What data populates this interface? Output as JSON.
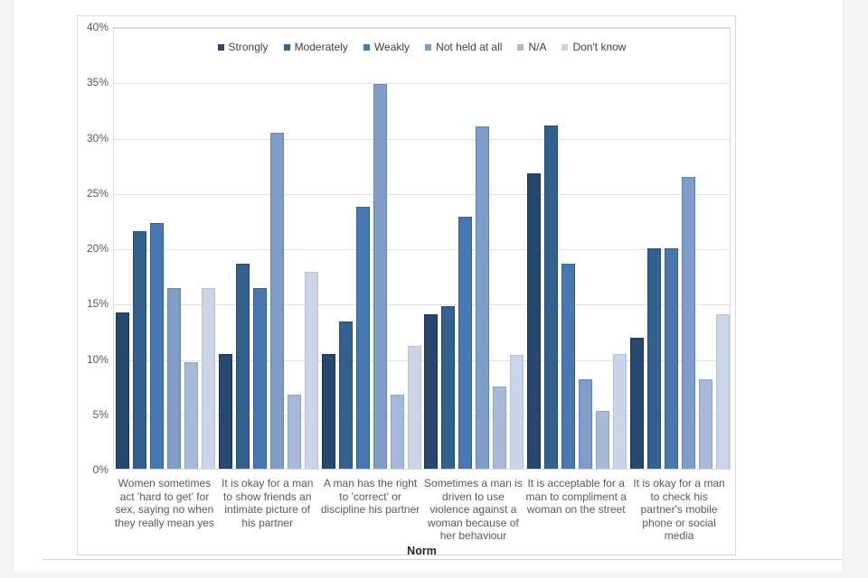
{
  "chart_data": {
    "type": "bar",
    "title": "",
    "xlabel": "Norm",
    "ylabel": "",
    "ylim": [
      0,
      40
    ],
    "ytick_step": 5,
    "yticks": [
      "0%",
      "5%",
      "10%",
      "15%",
      "20%",
      "25%",
      "30%",
      "35%",
      "40%"
    ],
    "grid": true,
    "legend_position": "top-center",
    "categories": [
      "Women sometimes act 'hard to get' for sex, saying no when they really mean yes",
      "It is okay for a man to show friends an intimate picture of his partner",
      "A man has the right to 'correct' or discipline his partner",
      "Sometimes a man is driven to use violence against a woman because of her behaviour",
      "It is acceptable for a man to compliment a woman on the street",
      "It is okay for a man to check his partner's mobile phone or social media"
    ],
    "series": [
      {
        "name": "Strongly",
        "color": "#26476E",
        "border": "#1a3557",
        "values": [
          14.1,
          10.4,
          10.4,
          14.0,
          26.7,
          11.8
        ]
      },
      {
        "name": "Moderately",
        "color": "#33618F",
        "border": "#234b74",
        "values": [
          21.5,
          18.5,
          13.3,
          14.7,
          31.0,
          19.9
        ]
      },
      {
        "name": "Weakly",
        "color": "#4878B2",
        "border": "#2f5f97",
        "values": [
          22.2,
          16.3,
          23.7,
          22.8,
          18.5,
          19.9
        ]
      },
      {
        "name": "Not held at all",
        "color": "#7F9DC9",
        "border": "#6383b4",
        "values": [
          16.3,
          30.4,
          34.8,
          30.9,
          8.1,
          26.4
        ]
      },
      {
        "name": "N/A",
        "color": "#A6B9D9",
        "border": "#8ca3c9",
        "values": [
          9.6,
          6.7,
          6.7,
          7.4,
          5.2,
          8.1
        ]
      },
      {
        "name": "Don't know",
        "color": "#CBD5E8",
        "border": "#b3c2dc",
        "values": [
          16.3,
          17.8,
          11.1,
          10.3,
          10.4,
          14.0
        ]
      }
    ]
  }
}
